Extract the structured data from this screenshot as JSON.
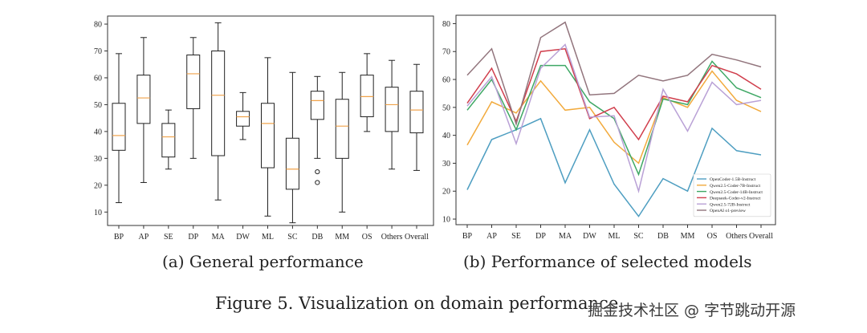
{
  "chart_data": [
    {
      "type": "box",
      "categories": [
        "BP",
        "AP",
        "SE",
        "DP",
        "MA",
        "DW",
        "ML",
        "SC",
        "DB",
        "MM",
        "OS",
        "Others",
        "Overall"
      ],
      "yticks": [
        10,
        20,
        30,
        40,
        50,
        60,
        70,
        80
      ],
      "ylim": [
        5,
        83
      ],
      "boxes": [
        {
          "min": 13.5,
          "q1": 33,
          "median": 38.5,
          "q3": 50.5,
          "max": 69
        },
        {
          "min": 21,
          "q1": 43,
          "median": 52.5,
          "q3": 61,
          "max": 75
        },
        {
          "min": 26,
          "q1": 30.5,
          "median": 38,
          "q3": 43,
          "max": 48
        },
        {
          "min": 30,
          "q1": 48.5,
          "median": 61.5,
          "q3": 68.5,
          "max": 75
        },
        {
          "min": 14.5,
          "q1": 31,
          "median": 53.5,
          "q3": 70,
          "max": 80.5
        },
        {
          "min": 37,
          "q1": 42,
          "median": 45.5,
          "q3": 47.5,
          "max": 54.5
        },
        {
          "min": 8.5,
          "q1": 26.5,
          "median": 43,
          "q3": 50.5,
          "max": 67.5
        },
        {
          "min": 6,
          "q1": 18.5,
          "median": 26,
          "q3": 37.5,
          "max": 62
        },
        {
          "min": 30,
          "q1": 44.5,
          "median": 51.5,
          "q3": 55,
          "max": 60.5,
          "outliers": [
            25,
            21
          ]
        },
        {
          "min": 10,
          "q1": 30,
          "median": 42,
          "q3": 52,
          "max": 62
        },
        {
          "min": 40,
          "q1": 45.5,
          "median": 53,
          "q3": 61,
          "max": 69
        },
        {
          "min": 26,
          "q1": 40,
          "median": 50,
          "q3": 56.5,
          "max": 66.5
        },
        {
          "min": 25.5,
          "q1": 39.5,
          "median": 48,
          "q3": 55,
          "max": 65
        }
      ]
    },
    {
      "type": "line",
      "categories": [
        "BP",
        "AP",
        "SE",
        "DP",
        "MA",
        "DW",
        "ML",
        "SC",
        "DB",
        "MM",
        "OS",
        "Others",
        "Overall"
      ],
      "yticks": [
        10,
        20,
        30,
        40,
        50,
        60,
        70,
        80
      ],
      "ylim": [
        8,
        83
      ],
      "series": [
        {
          "name": "OpenCoder-1.5B-Instruct",
          "color": "#4e9ec1",
          "values": [
            20.5,
            38.5,
            42,
            46,
            23,
            42,
            22.5,
            11,
            24.5,
            20,
            42.5,
            34.5,
            33
          ]
        },
        {
          "name": "Qwen2.5-Coder-7B-Instruct",
          "color": "#f2aa3c",
          "values": [
            36.5,
            52,
            48,
            59.5,
            49,
            50,
            37.5,
            30,
            53.5,
            50,
            63,
            52.5,
            48.5
          ]
        },
        {
          "name": "Qwen2.5-Coder-14B-Instruct",
          "color": "#3fa865",
          "values": [
            49,
            60,
            42,
            65,
            65,
            52,
            46,
            26,
            53,
            51,
            66.5,
            57,
            53.5
          ]
        },
        {
          "name": "Deepseek-Coder-v2-Instruct",
          "color": "#d03e4c",
          "values": [
            51.5,
            64,
            45,
            70,
            71,
            46,
            50,
            38.5,
            54,
            52,
            65,
            62,
            56.5
          ]
        },
        {
          "name": "Qwen2.5-72B-Instruct",
          "color": "#b9a1d6",
          "values": [
            50.5,
            61,
            37,
            64,
            72.5,
            46.5,
            47,
            20,
            56.5,
            41.5,
            59,
            51,
            52.5
          ]
        },
        {
          "name": "OpenAI o1-preview",
          "color": "#92757d",
          "values": [
            61.5,
            71,
            44,
            75,
            80.5,
            54.5,
            55,
            61.5,
            59.5,
            61.5,
            69,
            67,
            64.5
          ]
        }
      ]
    }
  ],
  "captions": {
    "a": "(a) General performance",
    "b": "(b) Performance of selected models",
    "figure": "Figure 5.  Visualization on domain performance"
  },
  "watermark": "掘金技术社区 @ 字节跳动开源"
}
